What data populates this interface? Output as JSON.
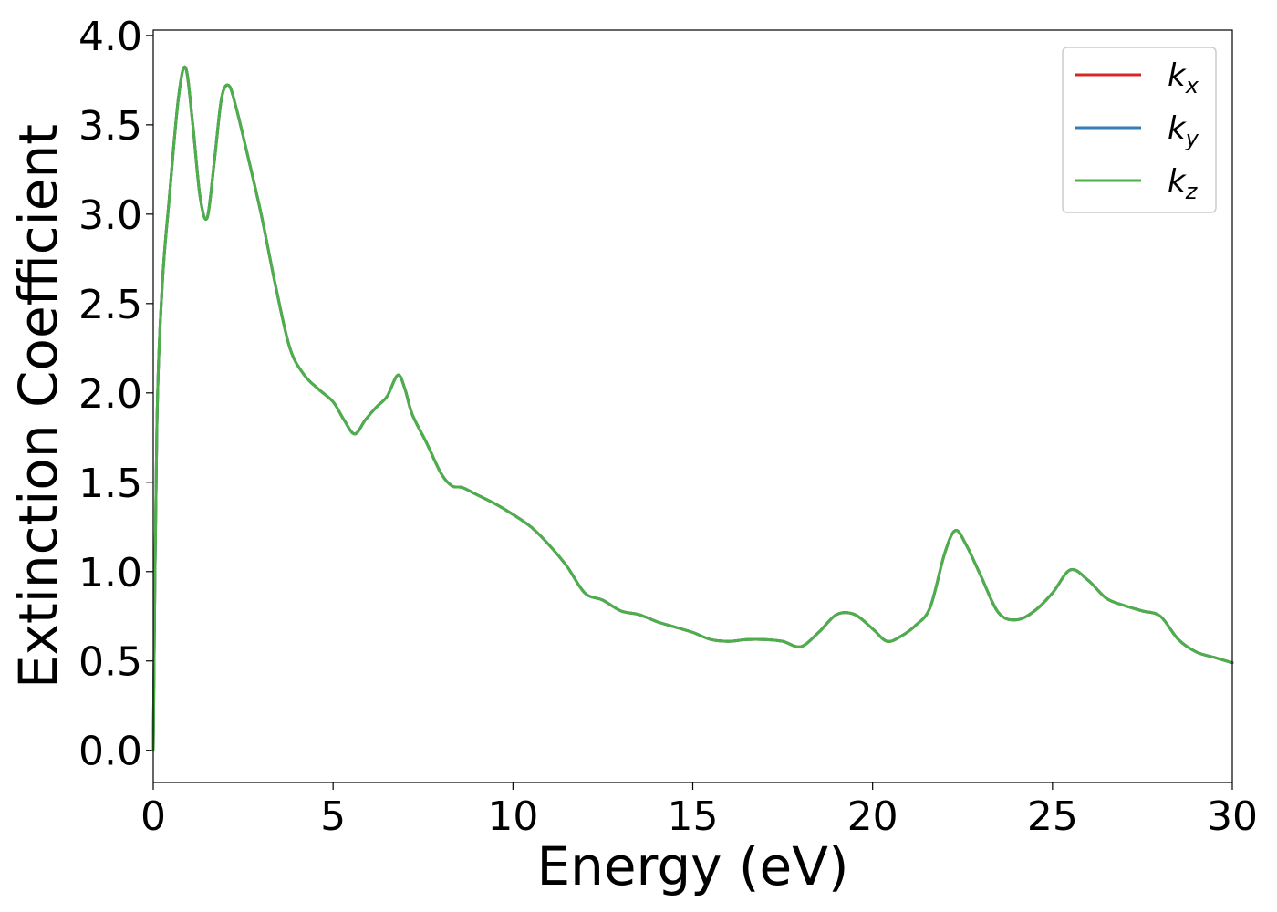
{
  "chart_data": {
    "type": "line",
    "title": "",
    "xlabel": "Energy (eV)",
    "ylabel": "Extinction Coefficient",
    "xlim": [
      0,
      30
    ],
    "ylim": [
      -0.18,
      4.03
    ],
    "xticks": [
      0,
      5,
      10,
      15,
      20,
      25,
      30
    ],
    "xtick_labels": [
      "0",
      "5",
      "10",
      "15",
      "20",
      "25",
      "30"
    ],
    "yticks": [
      0.0,
      0.5,
      1.0,
      1.5,
      2.0,
      2.5,
      3.0,
      3.5,
      4.0
    ],
    "ytick_labels": [
      "0.0",
      "0.5",
      "1.0",
      "1.5",
      "2.0",
      "2.5",
      "3.0",
      "3.5",
      "4.0"
    ],
    "grid": false,
    "legend_position": "top-right",
    "x": [
      0,
      0.1,
      0.25,
      0.45,
      0.7,
      0.9,
      1.1,
      1.3,
      1.5,
      1.7,
      1.9,
      2.1,
      2.3,
      2.6,
      3.0,
      3.4,
      3.8,
      4.2,
      4.6,
      5.0,
      5.3,
      5.6,
      5.9,
      6.2,
      6.5,
      6.8,
      7.0,
      7.2,
      7.6,
      8.0,
      8.3,
      8.6,
      9.0,
      9.5,
      10.0,
      10.5,
      11.0,
      11.5,
      12.0,
      12.5,
      13.0,
      13.5,
      14.0,
      14.5,
      15.0,
      15.5,
      16.0,
      16.5,
      17.0,
      17.5,
      18.0,
      18.5,
      19.0,
      19.5,
      20.0,
      20.4,
      20.8,
      21.2,
      21.6,
      22.0,
      22.3,
      22.6,
      23.0,
      23.5,
      24.0,
      24.5,
      25.0,
      25.5,
      26.0,
      26.5,
      27.0,
      27.5,
      28.0,
      28.5,
      29.0,
      29.5,
      30.0
    ],
    "series": [
      {
        "name": "k_x",
        "label_base": "k",
        "label_sub": "x",
        "color": "#d62728",
        "values": [
          0.0,
          1.8,
          2.6,
          3.1,
          3.65,
          3.82,
          3.5,
          3.1,
          2.98,
          3.3,
          3.65,
          3.72,
          3.6,
          3.35,
          3.0,
          2.6,
          2.25,
          2.1,
          2.02,
          1.95,
          1.85,
          1.77,
          1.85,
          1.92,
          1.98,
          2.1,
          2.02,
          1.88,
          1.72,
          1.55,
          1.48,
          1.47,
          1.43,
          1.38,
          1.32,
          1.25,
          1.15,
          1.03,
          0.88,
          0.84,
          0.78,
          0.76,
          0.72,
          0.69,
          0.66,
          0.62,
          0.61,
          0.62,
          0.62,
          0.61,
          0.58,
          0.66,
          0.76,
          0.76,
          0.68,
          0.61,
          0.64,
          0.7,
          0.8,
          1.1,
          1.23,
          1.15,
          0.98,
          0.77,
          0.73,
          0.78,
          0.88,
          1.01,
          0.95,
          0.85,
          0.81,
          0.78,
          0.75,
          0.62,
          0.55,
          0.52,
          0.49
        ]
      },
      {
        "name": "k_y",
        "label_base": "k",
        "label_sub": "y",
        "color": "#377eb8",
        "values": [
          0.0,
          1.8,
          2.6,
          3.1,
          3.65,
          3.82,
          3.5,
          3.1,
          2.98,
          3.3,
          3.65,
          3.72,
          3.6,
          3.35,
          3.0,
          2.6,
          2.25,
          2.1,
          2.02,
          1.95,
          1.85,
          1.77,
          1.85,
          1.92,
          1.98,
          2.1,
          2.02,
          1.88,
          1.72,
          1.55,
          1.48,
          1.47,
          1.43,
          1.38,
          1.32,
          1.25,
          1.15,
          1.03,
          0.88,
          0.84,
          0.78,
          0.76,
          0.72,
          0.69,
          0.66,
          0.62,
          0.61,
          0.62,
          0.62,
          0.61,
          0.58,
          0.66,
          0.76,
          0.76,
          0.68,
          0.61,
          0.64,
          0.7,
          0.8,
          1.1,
          1.23,
          1.15,
          0.98,
          0.77,
          0.73,
          0.78,
          0.88,
          1.01,
          0.95,
          0.85,
          0.81,
          0.78,
          0.75,
          0.62,
          0.55,
          0.52,
          0.49
        ]
      },
      {
        "name": "k_z",
        "label_base": "k",
        "label_sub": "z",
        "color": "#4daf4a",
        "values": [
          0.0,
          1.8,
          2.6,
          3.1,
          3.65,
          3.82,
          3.5,
          3.1,
          2.98,
          3.3,
          3.65,
          3.72,
          3.6,
          3.35,
          3.0,
          2.6,
          2.25,
          2.1,
          2.02,
          1.95,
          1.85,
          1.77,
          1.85,
          1.92,
          1.98,
          2.1,
          2.02,
          1.88,
          1.72,
          1.55,
          1.48,
          1.47,
          1.43,
          1.38,
          1.32,
          1.25,
          1.15,
          1.03,
          0.88,
          0.84,
          0.78,
          0.76,
          0.72,
          0.69,
          0.66,
          0.62,
          0.61,
          0.62,
          0.62,
          0.61,
          0.58,
          0.66,
          0.76,
          0.76,
          0.68,
          0.61,
          0.64,
          0.7,
          0.8,
          1.1,
          1.23,
          1.15,
          0.98,
          0.77,
          0.73,
          0.78,
          0.88,
          1.01,
          0.95,
          0.85,
          0.81,
          0.78,
          0.75,
          0.62,
          0.55,
          0.52,
          0.49
        ]
      }
    ]
  }
}
